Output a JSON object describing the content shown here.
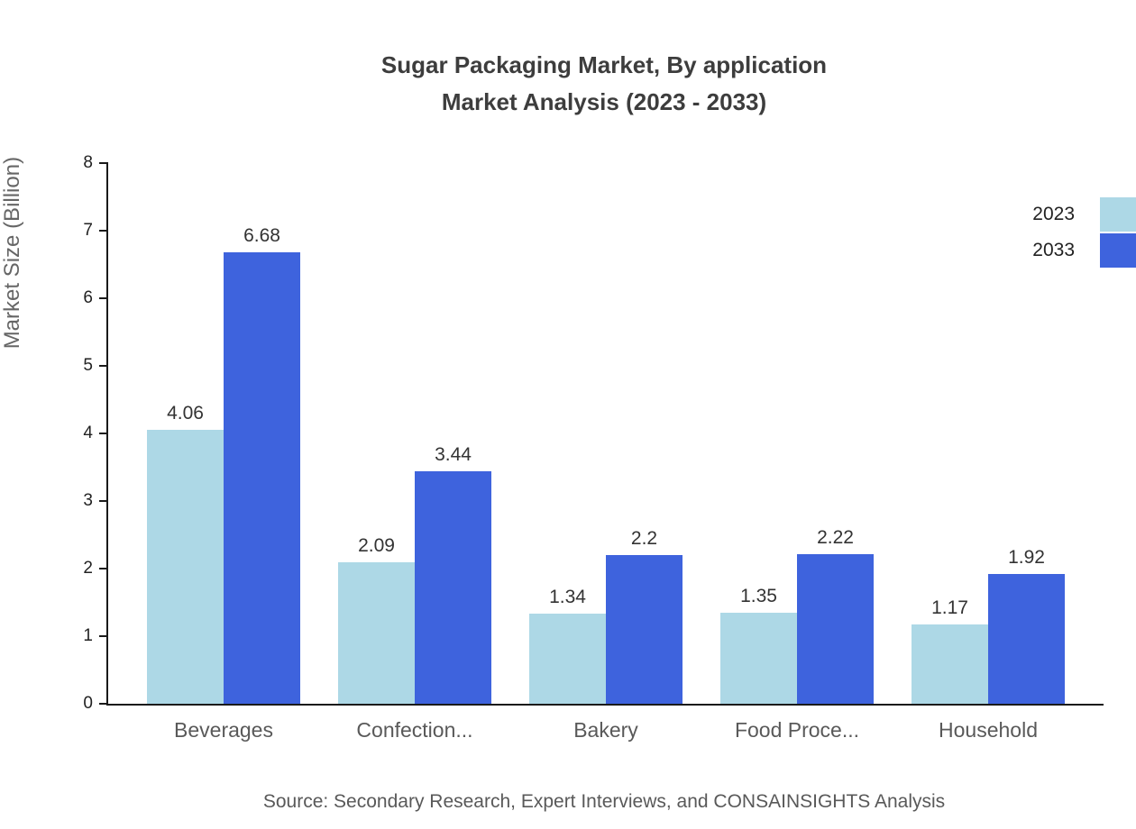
{
  "title": {
    "line1": "Sugar Packaging Market, By application",
    "line2": "Market Analysis (2023 - 2033)"
  },
  "source": "Source: Secondary Research, Expert Interviews, and CONSAINSIGHTS Analysis",
  "chart_data": {
    "type": "bar",
    "title": "Sugar Packaging Market, By application Market Analysis (2023 - 2033)",
    "categories": [
      "Beverages",
      "Confection...",
      "Bakery",
      "Food Proce...",
      "Household"
    ],
    "series": [
      {
        "name": "2023",
        "color": "#ADD8E6",
        "values": [
          4.06,
          2.09,
          1.34,
          1.35,
          1.17
        ]
      },
      {
        "name": "2033",
        "color": "#3E63DD",
        "values": [
          6.68,
          3.44,
          2.2,
          2.22,
          1.92
        ]
      }
    ],
    "xlabel": "",
    "ylabel": "Market Size (Billion)",
    "ylim": [
      0,
      8
    ],
    "yticks": [
      0,
      1,
      2,
      3,
      4,
      5,
      6,
      7,
      8
    ],
    "grid": false,
    "legend_position": "top-right",
    "value_labels": true
  }
}
